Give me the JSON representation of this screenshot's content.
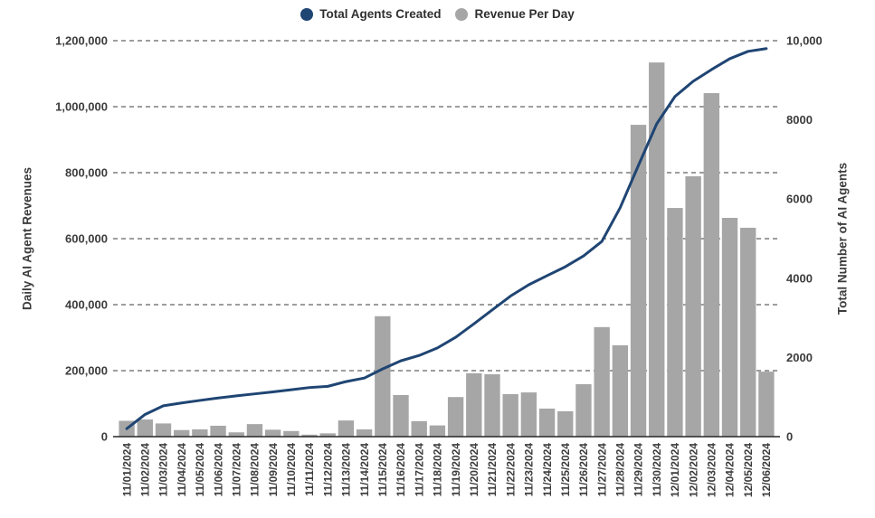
{
  "legend": {
    "agents_label": "Total Agents Created",
    "revenue_label": "Revenue Per Day"
  },
  "chart_data": {
    "type": "bar",
    "subtype": "combo-bar-line",
    "title": "",
    "categories": [
      "11/01/2024",
      "11/02/2024",
      "11/03/2024",
      "11/04/2024",
      "11/05/2024",
      "11/06/2024",
      "11/07/2024",
      "11/08/2024",
      "11/09/2024",
      "11/10/2024",
      "11/11/2024",
      "11/12/2024",
      "11/13/2024",
      "11/14/2024",
      "11/15/2024",
      "11/16/2024",
      "11/17/2024",
      "11/18/2024",
      "11/19/2024",
      "11/20/2024",
      "11/21/2024",
      "11/22/2024",
      "11/23/2024",
      "11/24/2024",
      "11/25/2024",
      "11/26/2024",
      "11/27/2024",
      "11/28/2024",
      "11/29/2024",
      "11/30/2024",
      "12/01/2024",
      "12/02/2024",
      "12/03/2024",
      "12/04/2024",
      "12/05/2024",
      "12/06/2024"
    ],
    "series": [
      {
        "name": "Revenue Per Day",
        "type": "bar",
        "axis": "left",
        "color": "#a6a6a6",
        "values": [
          48000,
          52000,
          40000,
          20000,
          22000,
          33000,
          13000,
          38000,
          21000,
          17000,
          6000,
          10000,
          49000,
          22000,
          365000,
          126000,
          47000,
          34000,
          120000,
          192000,
          189000,
          129000,
          134000,
          85000,
          77000,
          159000,
          332000,
          277000,
          945000,
          1134000,
          693000,
          789000,
          1041000,
          663000,
          633000,
          197000
        ]
      },
      {
        "name": "Total Agents Created",
        "type": "line",
        "axis": "right",
        "color": "#1f4573",
        "values": [
          200,
          560,
          780,
          850,
          915,
          975,
          1030,
          1080,
          1130,
          1185,
          1240,
          1270,
          1390,
          1480,
          1710,
          1915,
          2050,
          2240,
          2510,
          2850,
          3200,
          3550,
          3835,
          4065,
          4290,
          4565,
          4930,
          5780,
          6850,
          7900,
          8590,
          8975,
          9270,
          9545,
          9730,
          9800
        ]
      }
    ],
    "left_axis": {
      "label": "Daily AI Agent Revenues",
      "min": 0,
      "max": 1200000,
      "tick_labels": [
        "0",
        "200,000",
        "400,000",
        "600,000",
        "800,000",
        "1,000,000",
        "1,200,000"
      ]
    },
    "right_axis": {
      "label": "Total Number of AI Agents",
      "min": 0,
      "max": 10000,
      "tick_labels": [
        "0",
        "2000",
        "4000",
        "6000",
        "8000",
        "10,000"
      ]
    },
    "grid": "horizontal-dashed",
    "legend_position": "top-center",
    "colors": {
      "line": "#1f4573",
      "bar": "#a6a6a6",
      "grid": "#3b3b3b",
      "axis_line": "#262626",
      "text": "#3c3c3c"
    }
  }
}
